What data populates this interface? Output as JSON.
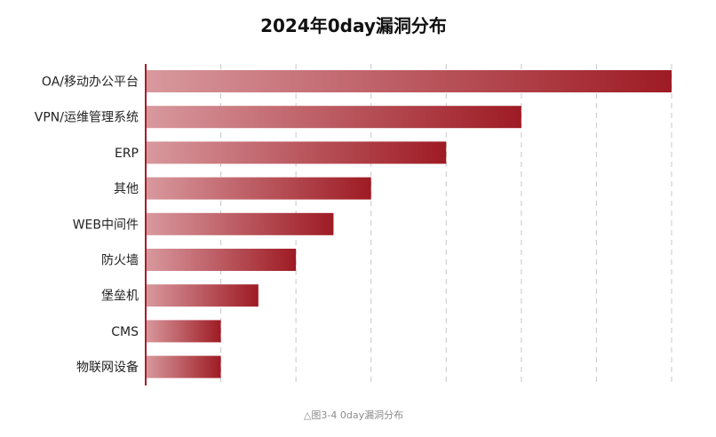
{
  "chart_data": {
    "type": "bar",
    "orientation": "horizontal",
    "title": "2024年0day漏洞分布",
    "categories": [
      "OA/移动办公平台",
      "VPN/运维管理系统",
      "ERP",
      "其他",
      "WEB中间件",
      "防火墙",
      "堡垒机",
      "CMS",
      "物联网设备"
    ],
    "values": [
      35,
      25,
      20,
      15,
      12.5,
      10,
      7.5,
      5,
      5
    ],
    "xlim": [
      0,
      35
    ],
    "xticks": [
      0,
      5,
      10,
      15,
      20,
      25,
      30,
      35
    ],
    "grid": true,
    "tick_labels_shown": false,
    "colors": {
      "bar_start": "#d8999e",
      "bar_end": "#9e1b24",
      "axis": "#a61e28",
      "grid": "#c8c8c8"
    }
  },
  "caption": "△图3-4 0day漏洞分布"
}
